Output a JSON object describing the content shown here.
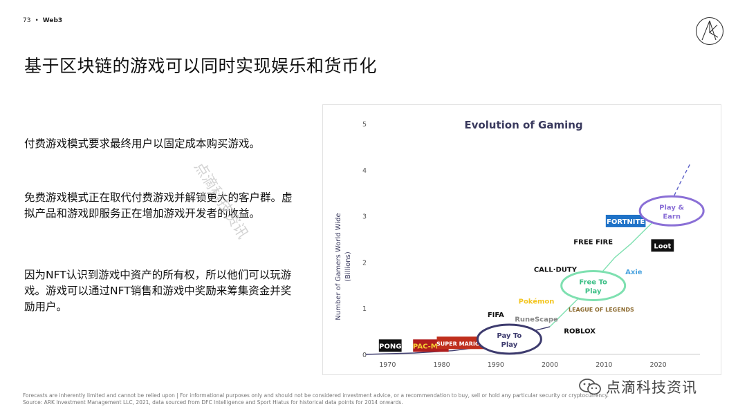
{
  "header": {
    "page_number": "73",
    "bullet": "•",
    "section": "Web3"
  },
  "title": "基于区块链的游戏可以同时实现娱乐和货币化",
  "paragraphs": [
    "付费游戏模式要求最终用户以固定成本购买游戏。",
    "免费游戏模式正在取代付费游戏并解锁更大的客户群。虚拟产品和游戏即服务正在增加游戏开发者的收益。",
    "因为NFT认识到游戏中资产的所有权，所以他们可以玩游戏。游戏可以通过NFT销售和游戏中奖励来筹集资金并奖励用户。"
  ],
  "watermark": "点滴科技资讯",
  "chart_data": {
    "type": "line",
    "title": "Evolution of Gaming",
    "xlabel": "",
    "ylabel": "Number of Gamers World Wide (Billions)",
    "xlim": [
      1966,
      2029
    ],
    "ylim": [
      0,
      5
    ],
    "x_ticks": [
      "1970",
      "1980",
      "1990",
      "2000",
      "2010",
      "2020"
    ],
    "y_ticks": [
      "0",
      "1",
      "2",
      "3",
      "4",
      "5"
    ],
    "grid": false,
    "series": [
      {
        "style": "solid",
        "color": "#3d3b6e",
        "x": [
          1966,
          1975,
          1982,
          1988,
          1992,
          1995,
          2000
        ],
        "y": [
          0,
          0.03,
          0.08,
          0.17,
          0.3,
          0.45,
          0.6
        ]
      },
      {
        "style": "solid",
        "color": "#7ee0b0",
        "x": [
          2000,
          2003,
          2006,
          2009,
          2012,
          2015,
          2018,
          2022
        ],
        "y": [
          0.6,
          0.95,
          1.3,
          1.7,
          2.1,
          2.4,
          2.75,
          3.2
        ]
      },
      {
        "style": "dashed",
        "color": "#5b5fc7",
        "x": [
          2022,
          2024,
          2026
        ],
        "y": [
          3.2,
          3.7,
          4.15
        ]
      }
    ],
    "stages": [
      {
        "label_lines": [
          "Pay To",
          "Play"
        ],
        "x": 1992.5,
        "y": 0.33,
        "color": "#3d3b6e"
      },
      {
        "label_lines": [
          "Free To",
          "Play"
        ],
        "x": 2008,
        "y": 1.49,
        "color": "#7ee0b0"
      },
      {
        "label_lines": [
          "Play &",
          "Earn"
        ],
        "x": 2022.5,
        "y": 3.11,
        "color": "#8a6fd6"
      }
    ],
    "games": [
      {
        "name": "PONG",
        "x": 1970.5,
        "y": 0.19,
        "style": "box",
        "bg": "#111111",
        "fg": "#ffffff"
      },
      {
        "name": "PAC-MAN",
        "x": 1978,
        "y": 0.19,
        "style": "box",
        "bg": "#b01e1e",
        "fg": "#f6d032"
      },
      {
        "name": "SUPER MARIO BROS.",
        "x": 1985,
        "y": 0.25,
        "style": "box",
        "bg": "#c02f1d",
        "fg": "#ffffff"
      },
      {
        "name": "FIFA",
        "x": 1990,
        "y": 0.87,
        "style": "text",
        "fg": "#111111"
      },
      {
        "name": "Pokémon",
        "x": 1997.5,
        "y": 1.16,
        "style": "text",
        "fg": "#f3c623"
      },
      {
        "name": "RuneScape",
        "x": 1997.5,
        "y": 0.77,
        "style": "text",
        "fg": "#888888"
      },
      {
        "name": "ROBLOX",
        "x": 2005.5,
        "y": 0.52,
        "style": "text",
        "fg": "#111111"
      },
      {
        "name": "LEAGUE OF LEGENDS",
        "x": 2009.5,
        "y": 0.99,
        "style": "text",
        "fg": "#8c6a2f"
      },
      {
        "name": "CALL·DUTY",
        "x": 2001,
        "y": 1.85,
        "style": "text",
        "fg": "#111111"
      },
      {
        "name": "FREE FIRE",
        "x": 2008,
        "y": 2.45,
        "style": "text",
        "fg": "#111111"
      },
      {
        "name": "FORTNITE",
        "x": 2014,
        "y": 2.89,
        "style": "box",
        "bg": "#1f72c7",
        "fg": "#ffffff"
      },
      {
        "name": "Axie",
        "x": 2015.5,
        "y": 1.8,
        "style": "text",
        "fg": "#4aa3df"
      },
      {
        "name": "Loot",
        "x": 2020.8,
        "y": 2.36,
        "style": "box",
        "bg": "#111111",
        "fg": "#ffffff"
      }
    ]
  },
  "footer": {
    "line1": "Forecasts are inherently limited and cannot be relied upon | For informational purposes only and should not be considered investment advice, or a recommendation to buy, sell or hold any particular security or cryptocurrency.",
    "line2": "Source: ARK Investment Management LLC, 2021, data sourced from DFC Intelligence and Sport Hiatus for historical data points for 2014 onwards."
  },
  "brand_watermark": "点滴科技资讯"
}
